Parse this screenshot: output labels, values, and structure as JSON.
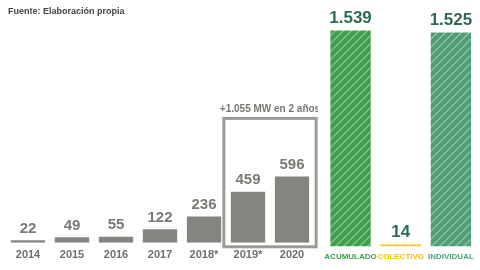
{
  "chart_data": [
    {
      "type": "bar",
      "source": "Fuente: Elaboración propia",
      "categories": [
        "2014",
        "2015",
        "2016",
        "2017",
        "2018*",
        "2019*",
        "2020"
      ],
      "values": [
        22,
        49,
        55,
        122,
        236,
        459,
        596
      ],
      "color": "#85857f",
      "ylim": [
        0,
        2000
      ],
      "grid": false,
      "tick_labels": "x",
      "data_labels": true,
      "annotations": [
        {
          "text": "+1.055 MW en 2 años",
          "categories": [
            "2019*",
            "2020"
          ]
        }
      ]
    },
    {
      "type": "bar",
      "categories": [
        "ACUMULADO",
        "COLECTIVO",
        "INDIVIDUAL"
      ],
      "values": [
        1539,
        14,
        1525
      ],
      "value_labels": [
        "1.539",
        "14",
        "1.525"
      ],
      "colors": [
        "#3f9e4a",
        "#f2c200",
        "#4f9e76"
      ],
      "ylim": [
        0,
        1600
      ],
      "grid": false,
      "tick_labels": "x",
      "data_labels": true
    }
  ]
}
